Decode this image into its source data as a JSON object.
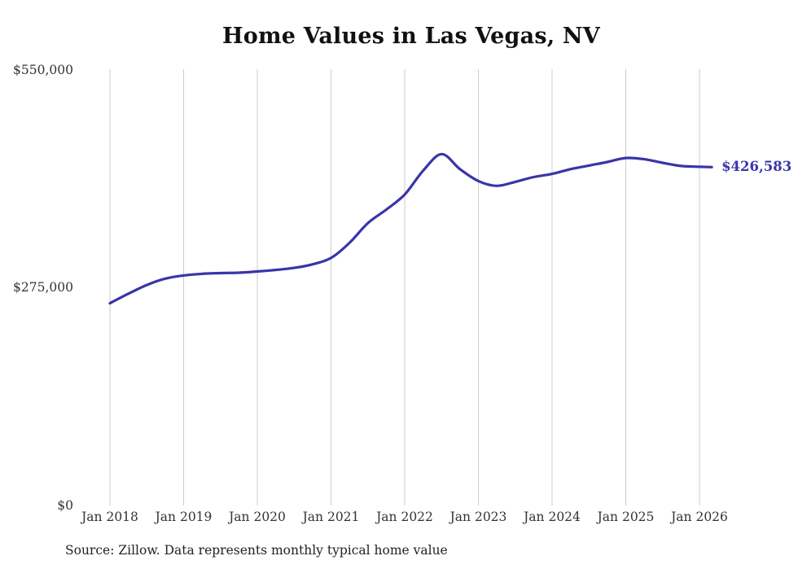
{
  "page": {
    "background": "#ffffff"
  },
  "chart_data": {
    "type": "line",
    "title": "Home Values in Las Vegas, NV",
    "source_note": "Source: Zillow. Data represents monthly typical home value",
    "latest_value_label": "$426,583",
    "latest_value": 426583,
    "line_color": "#3a35a8",
    "grid_color": "#cccccc",
    "grid": "vertical-only",
    "legend": "none",
    "ylim": [
      0,
      550000
    ],
    "y_ticks": [
      {
        "label": "$0",
        "value": 0
      },
      {
        "label": "$275,000",
        "value": 275000
      },
      {
        "label": "$550,000",
        "value": 550000
      }
    ],
    "x_ticks": [
      "Jan 2018",
      "Jan 2019",
      "Jan 2020",
      "Jan 2021",
      "Jan 2022",
      "Jan 2023",
      "Jan 2024",
      "Jan 2025",
      "Jan 2026"
    ],
    "series": [
      {
        "name": "Typical home value",
        "points_format": [
          "months_since_jan_2018",
          "usd"
        ],
        "points": [
          [
            0,
            255000
          ],
          [
            3,
            267000
          ],
          [
            6,
            278000
          ],
          [
            9,
            286000
          ],
          [
            12,
            290000
          ],
          [
            15,
            292000
          ],
          [
            18,
            293000
          ],
          [
            21,
            293500
          ],
          [
            24,
            295000
          ],
          [
            27,
            297000
          ],
          [
            30,
            299500
          ],
          [
            33,
            304000
          ],
          [
            36,
            312000
          ],
          [
            39,
            331000
          ],
          [
            42,
            356000
          ],
          [
            45,
            373000
          ],
          [
            48,
            392000
          ],
          [
            51,
            422000
          ],
          [
            54,
            443000
          ],
          [
            57,
            424000
          ],
          [
            60,
            409000
          ],
          [
            63,
            403000
          ],
          [
            66,
            408000
          ],
          [
            69,
            414000
          ],
          [
            72,
            418000
          ],
          [
            75,
            424000
          ],
          [
            78,
            428500
          ],
          [
            81,
            433000
          ],
          [
            84,
            438000
          ],
          [
            87,
            436500
          ],
          [
            90,
            432000
          ],
          [
            93,
            428000
          ],
          [
            96,
            427000
          ],
          [
            98,
            426583
          ]
        ]
      }
    ]
  }
}
